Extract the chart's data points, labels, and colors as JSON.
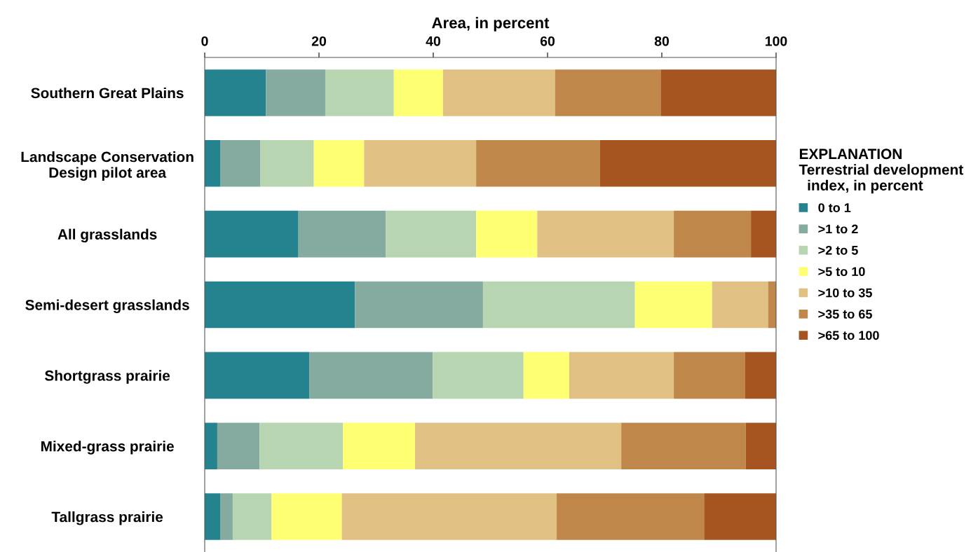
{
  "chart_data": {
    "type": "bar",
    "orientation": "horizontal",
    "stacked": true,
    "xlabel": "Area, in percent",
    "legend_title": "EXPLANATION\nTerrestrial development\n  index, in percent",
    "legend": "right",
    "grid": false,
    "categories": [
      "Southern Great Plains",
      "Landscape Conservation\nDesign pilot area",
      "All grasslands",
      "Semi-desert grasslands",
      "Shortgrass prairie",
      "Mixed-grass prairie",
      "Tallgrass prairie"
    ],
    "xlim": [
      0,
      100
    ],
    "xticks": [
      0,
      20,
      40,
      60,
      80,
      100
    ],
    "series": [
      {
        "name": "0 to 1",
        "color": "#24838f",
        "values": [
          10.7,
          2.7,
          16.4,
          26.3,
          18.3,
          2.2,
          2.7
        ]
      },
      {
        "name": ">1 to 2",
        "color": "#85aba0",
        "values": [
          10.4,
          7.0,
          15.3,
          22.4,
          21.6,
          7.4,
          2.2
        ]
      },
      {
        "name": ">2 to 5",
        "color": "#b8d5b2",
        "values": [
          12.0,
          9.4,
          15.8,
          26.6,
          15.9,
          14.6,
          6.8
        ]
      },
      {
        "name": ">5 to 10",
        "color": "#ffff73",
        "values": [
          8.6,
          8.8,
          10.7,
          13.5,
          8.0,
          12.6,
          12.3
        ]
      },
      {
        "name": ">10 to 35",
        "color": "#e0c083",
        "values": [
          19.6,
          19.6,
          23.9,
          9.8,
          18.3,
          36.1,
          37.6
        ]
      },
      {
        "name": ">35 to 65",
        "color": "#c0874a",
        "values": [
          18.5,
          21.7,
          13.5,
          1.4,
          12.5,
          21.8,
          25.8
        ]
      },
      {
        "name": ">65 to 100",
        "color": "#a65420",
        "values": [
          20.2,
          30.8,
          4.4,
          0,
          5.4,
          5.3,
          12.6
        ]
      }
    ]
  }
}
